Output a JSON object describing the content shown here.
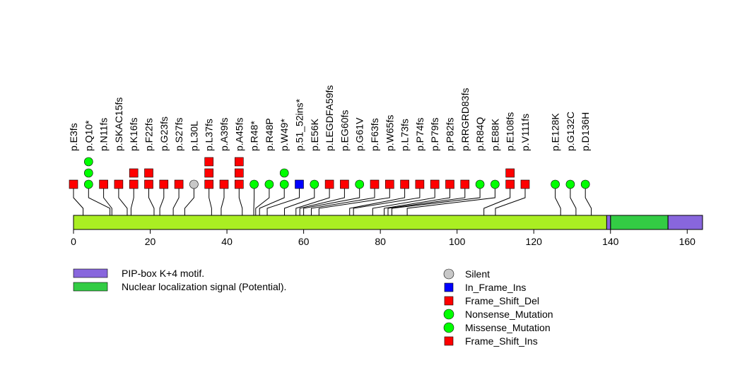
{
  "chart_data": {
    "type": "lollipop",
    "protein_length": 164,
    "axis": {
      "ticks": [
        0,
        20,
        40,
        60,
        80,
        100,
        120,
        140,
        160
      ],
      "xlim": [
        0,
        164
      ]
    },
    "domains": [
      {
        "name": "Nuclear localization signal (Potential).",
        "start": 140,
        "end": 155,
        "color": "#33cc44"
      },
      {
        "name": "PIP-box K+4 motif.",
        "start": 155,
        "end": 164,
        "color": "#8866dd"
      },
      {
        "name": "",
        "start": 139,
        "end": 140,
        "color": "#8866dd"
      }
    ],
    "backbone_color": "#aaee22",
    "mutations": [
      {
        "label": "p.E3fs",
        "slot": 0,
        "pos": 2.5,
        "markers": [
          "fs_del"
        ]
      },
      {
        "label": "p.Q10*",
        "slot": 1,
        "pos": 9.5,
        "markers": [
          "nonsense",
          "nonsense",
          "nonsense"
        ]
      },
      {
        "label": "p.N11fs",
        "slot": 2,
        "pos": 10,
        "markers": [
          "fs_del"
        ]
      },
      {
        "label": "p.SKAC15fs",
        "slot": 3,
        "pos": 14,
        "markers": [
          "fs_del"
        ]
      },
      {
        "label": "p.K16fs",
        "slot": 4,
        "pos": 15,
        "markers": [
          "fs_del",
          "fs_del"
        ]
      },
      {
        "label": "p.F22fs",
        "slot": 5,
        "pos": 21,
        "markers": [
          "fs_del",
          "fs_del"
        ]
      },
      {
        "label": "p.G23fs",
        "slot": 6,
        "pos": 22.5,
        "markers": [
          "fs_del"
        ]
      },
      {
        "label": "p.S27fs",
        "slot": 7,
        "pos": 26,
        "markers": [
          "fs_del"
        ]
      },
      {
        "label": "p.L30L",
        "slot": 8,
        "pos": 29,
        "markers": [
          "silent"
        ]
      },
      {
        "label": "p.L37fs",
        "slot": 9,
        "pos": 36,
        "markers": [
          "fs_del",
          "fs_del",
          "fs_del"
        ]
      },
      {
        "label": "p.A39fs",
        "slot": 10,
        "pos": 38.5,
        "markers": [
          "fs_del"
        ]
      },
      {
        "label": "p.A45fs",
        "slot": 11,
        "pos": 44,
        "markers": [
          "fs_del",
          "fs_del",
          "fs_del"
        ]
      },
      {
        "label": "p.R48*",
        "slot": 12,
        "pos": 47,
        "markers": [
          "nonsense"
        ]
      },
      {
        "label": "p.R48P",
        "slot": 13,
        "pos": 47.5,
        "markers": [
          "missense"
        ]
      },
      {
        "label": "p.W49*",
        "slot": 14,
        "pos": 48.5,
        "markers": [
          "nonsense",
          "nonsense"
        ]
      },
      {
        "label": "p.51_52ins*",
        "slot": 15,
        "pos": 50.5,
        "markers": [
          "inframe_ins"
        ]
      },
      {
        "label": "p.E56K",
        "slot": 16,
        "pos": 55,
        "markers": [
          "missense"
        ]
      },
      {
        "label": "p.LEGDFA59fs",
        "slot": 17,
        "pos": 58,
        "markers": [
          "fs_del"
        ]
      },
      {
        "label": "p.EG60fs",
        "slot": 18,
        "pos": 59,
        "markers": [
          "fs_del"
        ]
      },
      {
        "label": "p.G61V",
        "slot": 19,
        "pos": 60,
        "markers": [
          "missense"
        ]
      },
      {
        "label": "p.F63fs",
        "slot": 20,
        "pos": 62,
        "markers": [
          "fs_del"
        ]
      },
      {
        "label": "p.W65fs",
        "slot": 21,
        "pos": 64,
        "markers": [
          "fs_del"
        ]
      },
      {
        "label": "p.L73fs",
        "slot": 22,
        "pos": 72,
        "markers": [
          "fs_del"
        ]
      },
      {
        "label": "p.P74fs",
        "slot": 23,
        "pos": 73,
        "markers": [
          "fs_del"
        ]
      },
      {
        "label": "p.P79fs",
        "slot": 24,
        "pos": 78,
        "markers": [
          "fs_del"
        ]
      },
      {
        "label": "p.P82fs",
        "slot": 25,
        "pos": 81,
        "markers": [
          "fs_del"
        ]
      },
      {
        "label": "p.RRGRD83fs",
        "slot": 26,
        "pos": 82,
        "markers": [
          "fs_del"
        ]
      },
      {
        "label": "p.R84Q",
        "slot": 27,
        "pos": 83,
        "markers": [
          "missense"
        ]
      },
      {
        "label": "p.E88K",
        "slot": 28,
        "pos": 87,
        "markers": [
          "missense"
        ]
      },
      {
        "label": "p.E108fs",
        "slot": 29,
        "pos": 107,
        "markers": [
          "fs_del",
          "fs_del"
        ]
      },
      {
        "label": "p.V111fs",
        "slot": 30,
        "pos": 110,
        "markers": [
          "fs_del"
        ]
      },
      {
        "label": "p.E128K",
        "slot": 32,
        "pos": 127,
        "markers": [
          "missense"
        ]
      },
      {
        "label": "p.G132C",
        "slot": 33,
        "pos": 131,
        "markers": [
          "missense"
        ]
      },
      {
        "label": "p.D136H",
        "slot": 34,
        "pos": 135,
        "markers": [
          "missense"
        ]
      }
    ],
    "legend_domains": [
      {
        "label": "PIP-box K+4 motif.",
        "color": "#8866dd"
      },
      {
        "label": "Nuclear localization signal (Potential).",
        "color": "#33cc44"
      }
    ],
    "legend_mutations": [
      {
        "label": "Silent",
        "shape": "circle",
        "color": "#c8c8c8"
      },
      {
        "label": "In_Frame_Ins",
        "shape": "square",
        "color": "#0000ff"
      },
      {
        "label": "Frame_Shift_Del",
        "shape": "square",
        "color": "#ff0000"
      },
      {
        "label": "Nonsense_Mutation",
        "shape": "circle",
        "color": "#00ff00"
      },
      {
        "label": "Missense_Mutation",
        "shape": "circle",
        "color": "#00ff00"
      },
      {
        "label": "Frame_Shift_Ins",
        "shape": "square",
        "color": "#ff0000"
      }
    ],
    "marker_styles": {
      "fs_del": {
        "shape": "square",
        "color": "#ff0000"
      },
      "fs_ins": {
        "shape": "square",
        "color": "#ff0000"
      },
      "inframe_ins": {
        "shape": "square",
        "color": "#0000ff"
      },
      "nonsense": {
        "shape": "circle",
        "color": "#00ff00"
      },
      "missense": {
        "shape": "circle",
        "color": "#00ff00"
      },
      "silent": {
        "shape": "circle",
        "color": "#c8c8c8"
      }
    }
  }
}
